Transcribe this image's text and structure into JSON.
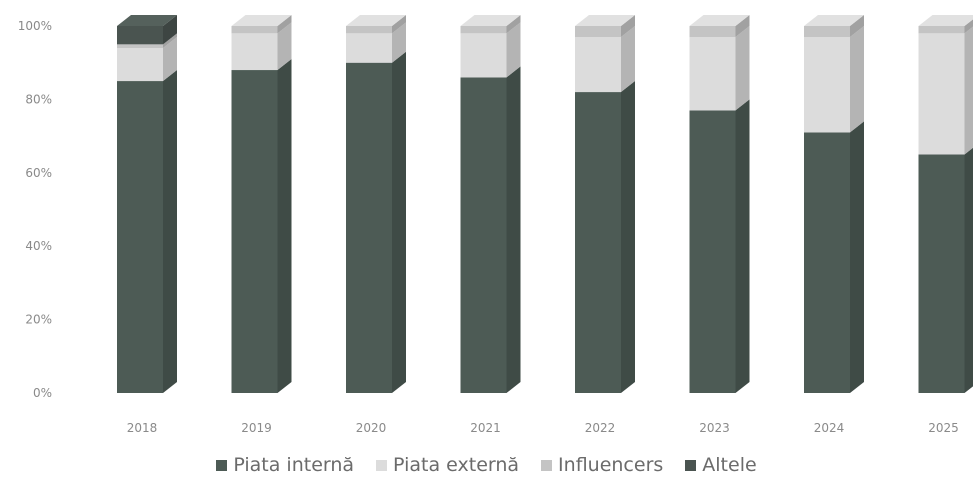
{
  "chart_data": {
    "type": "bar",
    "stacked": true,
    "percent": true,
    "three_d": true,
    "categories": [
      "2018",
      "2019",
      "2020",
      "2021",
      "2022",
      "2023",
      "2024",
      "2025"
    ],
    "series": [
      {
        "name": "Piata internă",
        "color": "#4d5b55",
        "values": [
          85,
          88,
          90,
          86,
          82,
          77,
          71,
          65
        ]
      },
      {
        "name": "Piata externă",
        "color": "#dcdcdc",
        "values": [
          9,
          10,
          8,
          12,
          15,
          20,
          26,
          33
        ]
      },
      {
        "name": "Influencers",
        "color": "#c4c4c4",
        "values": [
          1,
          2,
          2,
          2,
          3,
          3,
          3,
          2
        ]
      },
      {
        "name": "Altele",
        "color": "#4a5450",
        "values": [
          5,
          0,
          0,
          0,
          0,
          0,
          0,
          0
        ]
      }
    ],
    "y_ticks": [
      "0%",
      "20%",
      "40%",
      "60%",
      "80%",
      "100%"
    ],
    "ylim": [
      0,
      100
    ],
    "legend": "bottom"
  }
}
